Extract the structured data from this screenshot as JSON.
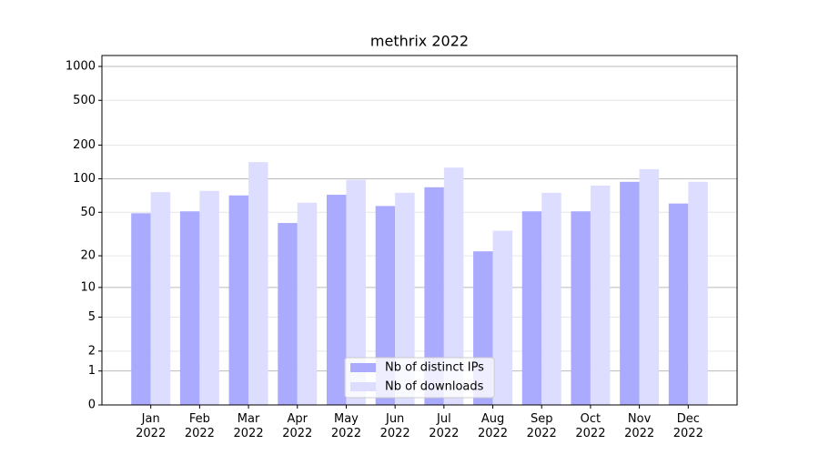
{
  "chart_data": {
    "type": "bar",
    "title": "methrix 2022",
    "categories": [
      "Jan\n2022",
      "Feb\n2022",
      "Mar\n2022",
      "Apr\n2022",
      "May\n2022",
      "Jun\n2022",
      "Jul\n2022",
      "Aug\n2022",
      "Sep\n2022",
      "Oct\n2022",
      "Nov\n2022",
      "Dec\n2022"
    ],
    "series": [
      {
        "name": "Nb of distinct IPs",
        "color": "#aaaaff",
        "values": [
          49,
          51,
          71,
          40,
          72,
          57,
          84,
          22,
          51,
          51,
          94,
          60
        ]
      },
      {
        "name": "Nb of downloads",
        "color": "#ddddff",
        "values": [
          76,
          78,
          141,
          61,
          98,
          75,
          126,
          34,
          75,
          87,
          122,
          94
        ]
      }
    ],
    "yscale": "log1p",
    "ylim": [
      0,
      1250
    ],
    "yticks": [
      0,
      1,
      2,
      5,
      10,
      20,
      50,
      100,
      200,
      500,
      1000
    ],
    "grid": true,
    "legend": "lower center"
  }
}
